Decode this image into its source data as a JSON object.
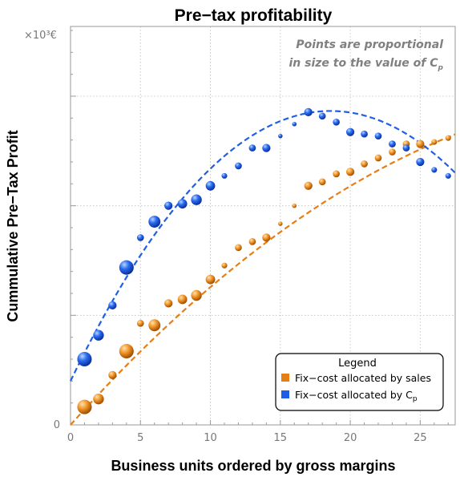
{
  "chart_data": {
    "type": "scatter",
    "title": "Pre−tax profitability",
    "xlabel": "Business units ordered by gross margins",
    "ylabel": "Cummulative Pre−Tax Profit",
    "y_unit_label": "×10³€",
    "y_tick_labels": [
      "0"
    ],
    "x_ticks": [
      0,
      5,
      10,
      15,
      20,
      25
    ],
    "xlim": [
      0,
      27.5
    ],
    "ylim": [
      0,
      100
    ],
    "grid": true,
    "annotation": {
      "line1": "Points are proportional",
      "line2_prefix": "in size to the value of C",
      "line2_sub": "p"
    },
    "legend": {
      "title": "Legend",
      "position": "bottom-right",
      "entries": [
        {
          "label": "Fix−cost allocated by sales",
          "sub": "",
          "color": "#e67e14"
        },
        {
          "label": "Fix−cost allocated by C",
          "sub": "p",
          "color": "#1f5fe6"
        }
      ]
    },
    "series": [
      {
        "name": "Fix−cost allocated by sales",
        "color": "#e67e14",
        "x": [
          1,
          2,
          3,
          4,
          5,
          6,
          7,
          8,
          9,
          10,
          11,
          12,
          13,
          14,
          15,
          16,
          17,
          18,
          19,
          20,
          21,
          22,
          23,
          24,
          25,
          26,
          27
        ],
        "y": [
          4.5,
          6.5,
          12.5,
          18.5,
          25.5,
          25.0,
          30.5,
          31.5,
          32.5,
          36.5,
          40.0,
          44.5,
          46.0,
          47.0,
          50.5,
          55.0,
          60.0,
          61.0,
          63.0,
          63.5,
          65.5,
          67.0,
          68.5,
          70.5,
          70.5,
          71.0,
          72.0
        ],
        "size": [
          9,
          6,
          4,
          9,
          3,
          7,
          4,
          5,
          6,
          5,
          2,
          3,
          3,
          4,
          1,
          1,
          4,
          3,
          3,
          4,
          3,
          3,
          3,
          3,
          4,
          2,
          2
        ],
        "fit": {
          "kind": "quadratic",
          "coef": [
            0,
            3.9167,
            -0.046
          ],
          "x_range": [
            0,
            27.5
          ]
        }
      },
      {
        "name": "Fix−cost allocated by C",
        "sub": "p",
        "color": "#1f5fe6",
        "x": [
          1,
          2,
          3,
          4,
          5,
          6,
          7,
          8,
          9,
          10,
          11,
          12,
          13,
          14,
          15,
          16,
          17,
          18,
          19,
          20,
          21,
          22,
          23,
          24,
          25,
          26,
          27
        ],
        "y": [
          16.5,
          22.5,
          30.0,
          39.5,
          47.0,
          51.0,
          55.0,
          55.5,
          56.5,
          60.0,
          62.5,
          65.0,
          69.5,
          69.5,
          72.5,
          75.5,
          78.5,
          77.5,
          76.0,
          73.5,
          73.0,
          72.5,
          70.5,
          69.5,
          66.0,
          64.0,
          62.5
        ],
        "size": [
          9,
          6,
          4,
          9,
          3,
          7,
          4,
          5,
          6,
          5,
          2,
          3,
          3,
          4,
          1,
          1,
          4,
          3,
          3,
          4,
          3,
          3,
          3,
          3,
          4,
          2,
          2
        ],
        "fit": {
          "kind": "quadratic",
          "coef": [
            11.0,
            7.29,
            -0.196
          ],
          "x_range": [
            0,
            27.5
          ]
        }
      }
    ]
  }
}
